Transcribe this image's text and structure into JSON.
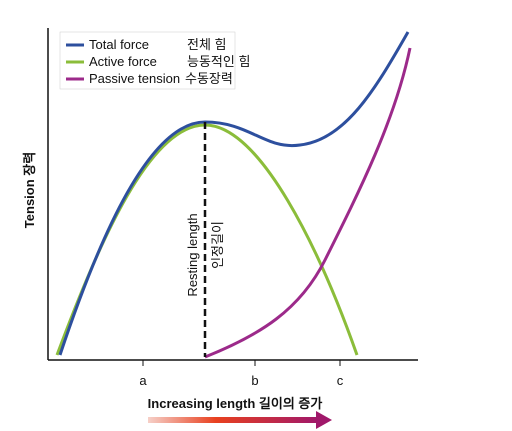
{
  "axis": {
    "y_label": "Tension 장력",
    "x_label": "Increasing length 길이의 증가",
    "x_ticks": [
      "a",
      "b",
      "c"
    ]
  },
  "legend": [
    {
      "label": "Total force",
      "korean": "전체 힘"
    },
    {
      "label": "Active force",
      "korean": "능동적인 힘"
    },
    {
      "label": "Passive tension",
      "korean": "수동장력"
    }
  ],
  "annotation": {
    "label": "Resting length",
    "korean": "인정길이"
  }
}
